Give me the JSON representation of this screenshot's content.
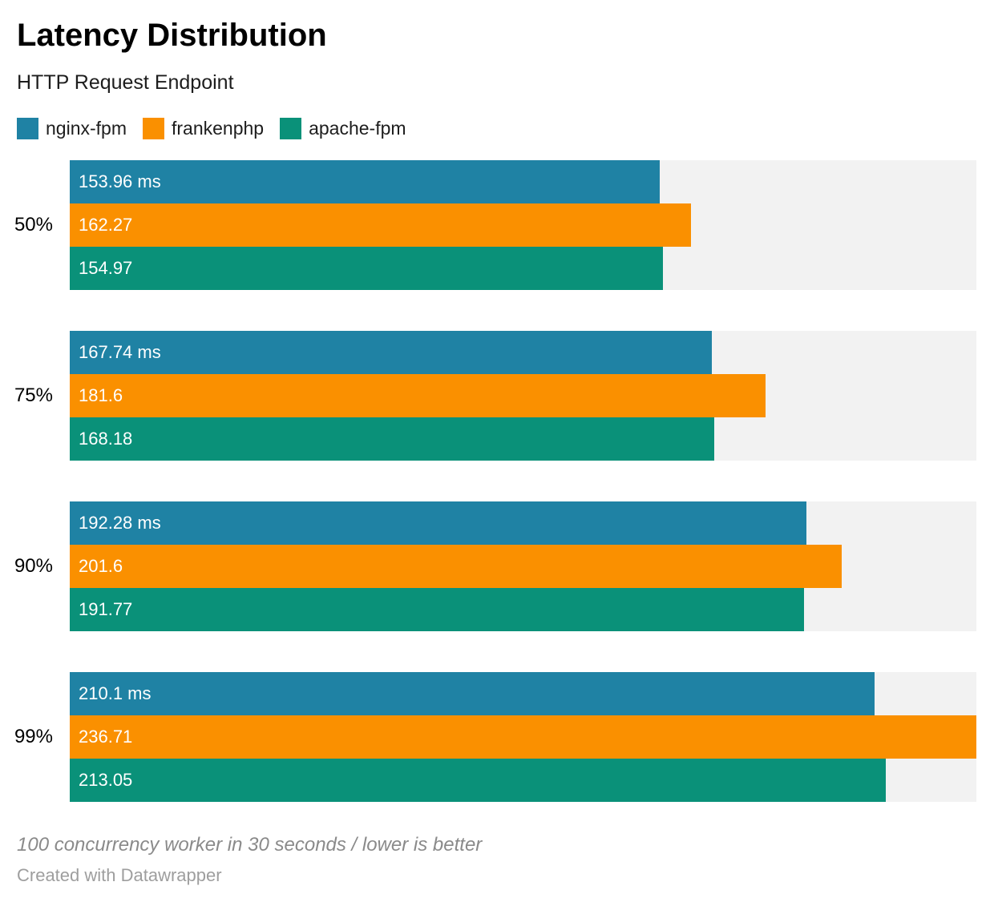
{
  "header": {
    "title": "Latency Distribution",
    "subtitle": "HTTP Request Endpoint"
  },
  "legend": {
    "items": [
      {
        "label": "nginx-fpm",
        "color": "#1f82a4"
      },
      {
        "label": "frankenphp",
        "color": "#fa9000"
      },
      {
        "label": "apache-fpm",
        "color": "#0a9179"
      }
    ]
  },
  "chart_data": {
    "type": "bar",
    "orientation": "horizontal",
    "grouped": true,
    "unit": "ms",
    "title": "Latency Distribution",
    "subtitle": "HTTP Request Endpoint",
    "categories": [
      "50%",
      "75%",
      "90%",
      "99%"
    ],
    "series": [
      {
        "name": "nginx-fpm",
        "color": "#1f82a4",
        "values": [
          153.96,
          167.74,
          192.28,
          210.1
        ],
        "display_values": [
          "153.96 ms",
          "167.74 ms",
          "192.28 ms",
          "210.1 ms"
        ]
      },
      {
        "name": "frankenphp",
        "color": "#fa9000",
        "values": [
          162.27,
          181.6,
          201.6,
          236.71
        ],
        "display_values": [
          "162.27",
          "181.6",
          "201.6",
          "236.71"
        ]
      },
      {
        "name": "apache-fpm",
        "color": "#0a9179",
        "values": [
          154.97,
          168.18,
          191.77,
          213.05
        ],
        "display_values": [
          "154.97",
          "168.18",
          "191.77",
          "213.05"
        ]
      }
    ],
    "xlim": [
      0,
      236.71
    ],
    "value_labels": "inside-start",
    "track_color": "#f2f2f2",
    "grid": false,
    "legend_position": "top"
  },
  "footer": {
    "note": "100 concurrency worker in 30 seconds / lower is better",
    "attribution": "Created with Datawrapper"
  }
}
